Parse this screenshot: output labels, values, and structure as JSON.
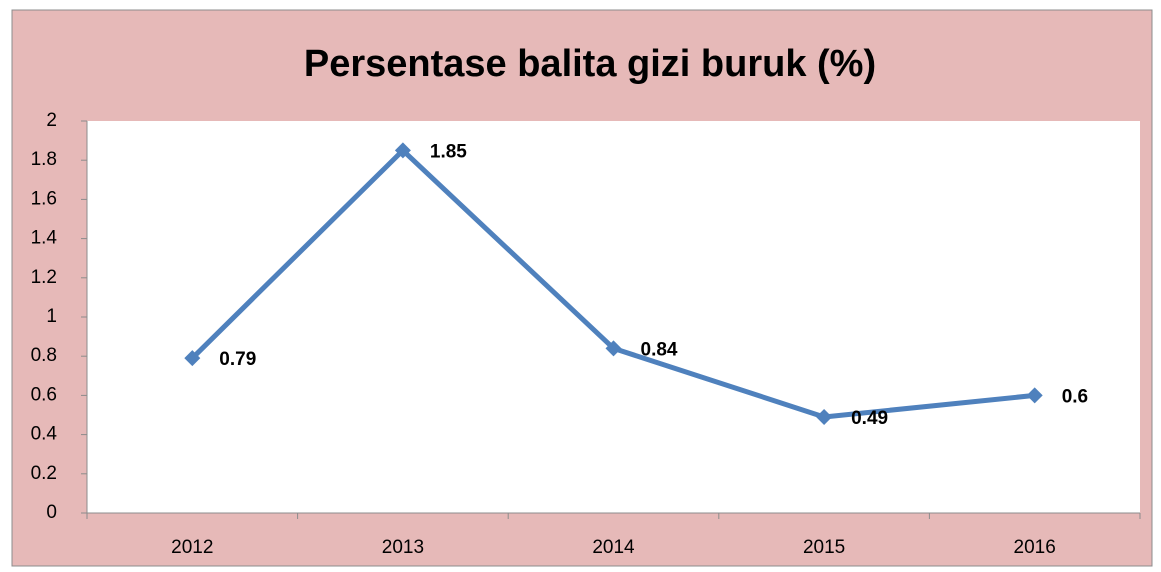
{
  "chart_data": {
    "type": "line",
    "title": "Persentase balita gizi buruk (%)",
    "categories": [
      "2012",
      "2013",
      "2014",
      "2015",
      "2016"
    ],
    "values": [
      0.79,
      1.85,
      0.84,
      0.49,
      0.6
    ],
    "color": "#4f81bd",
    "ylim": [
      0,
      2
    ],
    "yticks": [
      0,
      0.2,
      0.4,
      0.6,
      0.8,
      1,
      1.2,
      1.4,
      1.6,
      1.8,
      2
    ]
  }
}
